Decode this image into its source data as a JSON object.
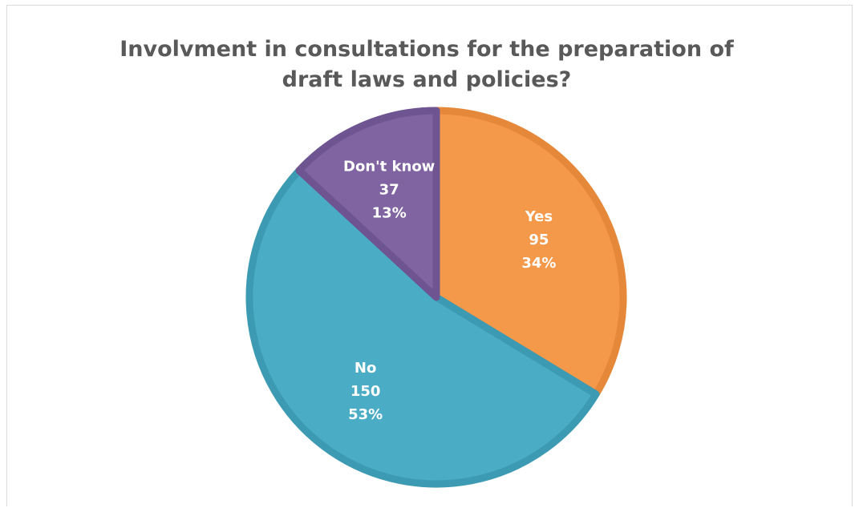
{
  "chart_data": {
    "type": "pie",
    "title_lines": [
      "Involvment in consultations for the preparation of",
      "draft laws and policies?"
    ],
    "slices": [
      {
        "name": "Yes",
        "value": 95,
        "percent": "34%",
        "color": "#F4984A",
        "border": "#E6883A"
      },
      {
        "name": "No",
        "value": 150,
        "percent": "53%",
        "color": "#4BACC6",
        "border": "#3D9AB3"
      },
      {
        "name": "Don't know",
        "value": 37,
        "percent": "13%",
        "color": "#8064A2",
        "border": "#6E5491"
      }
    ],
    "start_angle_deg": 0,
    "direction": "clockwise",
    "legend": "none",
    "data_labels": "category, value, percent"
  }
}
